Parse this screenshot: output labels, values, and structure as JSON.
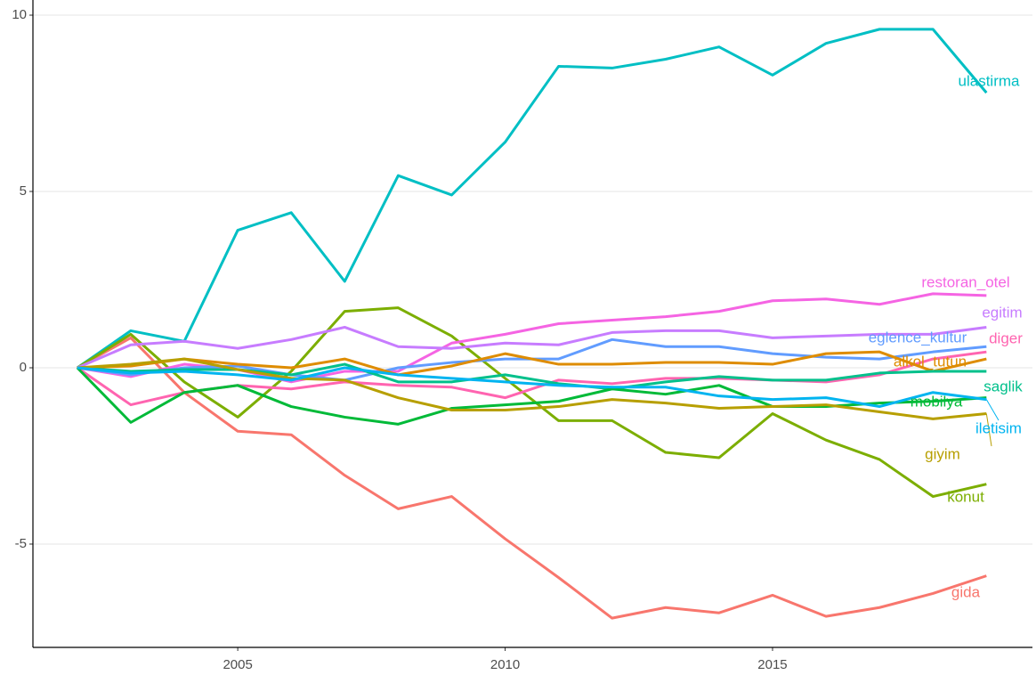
{
  "chart_data": {
    "type": "line",
    "x": [
      2002,
      2003,
      2004,
      2005,
      2006,
      2007,
      2008,
      2009,
      2010,
      2011,
      2012,
      2013,
      2014,
      2015,
      2016,
      2017,
      2018,
      2019
    ],
    "xlim": [
      2001.17,
      2019.86
    ],
    "xticks": [
      2005,
      2010,
      2015
    ],
    "ylim": [
      -7.93,
      10.43
    ],
    "yticks": [
      -5,
      0,
      5,
      10
    ],
    "grid": true,
    "series": [
      {
        "name": "ulastirma",
        "color": "#00bfc4",
        "values": [
          0,
          1.05,
          0.75,
          3.9,
          4.4,
          2.45,
          5.45,
          4.9,
          6.4,
          8.55,
          8.5,
          8.75,
          9.1,
          8.3,
          9.2,
          9.6,
          9.6,
          7.8
        ]
      },
      {
        "name": "gida",
        "color": "#f8766d",
        "values": [
          0,
          0.85,
          -0.7,
          -1.8,
          -1.9,
          -3.05,
          -4,
          -3.65,
          -4.85,
          -5.95,
          -7.1,
          -6.8,
          -6.95,
          -6.45,
          -7.05,
          -6.8,
          -6.4,
          -5.9
        ]
      },
      {
        "name": "konut",
        "color": "#7cae00",
        "values": [
          0,
          0.95,
          -0.4,
          -1.4,
          -0.1,
          1.6,
          1.7,
          0.9,
          -0.3,
          -1.5,
          -1.5,
          -2.4,
          -2.55,
          -1.3,
          -2.05,
          -2.6,
          -3.65,
          -3.3
        ]
      },
      {
        "name": "restoran_otel",
        "color": "#f564e3",
        "values": [
          0,
          -0.25,
          0.1,
          -0.05,
          -0.4,
          -0.1,
          -0.1,
          0.7,
          0.95,
          1.25,
          1.35,
          1.45,
          1.6,
          1.9,
          1.95,
          1.8,
          2.1,
          2.05
        ]
      },
      {
        "name": "egitim",
        "color": "#c77cff",
        "values": [
          0,
          0.65,
          0.75,
          0.55,
          0.8,
          1.15,
          0.6,
          0.55,
          0.7,
          0.65,
          1.0,
          1.05,
          1.05,
          0.85,
          0.9,
          0.95,
          0.95,
          1.15
        ]
      },
      {
        "name": "eglence_kultur",
        "color": "#619cff",
        "values": [
          0,
          -0.2,
          0.0,
          0.05,
          -0.2,
          -0.35,
          0.0,
          0.15,
          0.25,
          0.25,
          0.8,
          0.6,
          0.6,
          0.4,
          0.3,
          0.25,
          0.45,
          0.6
        ]
      },
      {
        "name": "diger",
        "color": "#ff64b0",
        "values": [
          0,
          -1.05,
          -0.7,
          -0.5,
          -0.6,
          -0.4,
          -0.5,
          -0.55,
          -0.85,
          -0.35,
          -0.45,
          -0.3,
          -0.3,
          -0.35,
          -0.4,
          -0.2,
          0.25,
          0.45
        ]
      },
      {
        "name": "alkol_tutun",
        "color": "#de8c00",
        "values": [
          0,
          0.05,
          0.25,
          0.1,
          0.0,
          0.25,
          -0.2,
          0.05,
          0.4,
          0.1,
          0.1,
          0.15,
          0.15,
          0.1,
          0.4,
          0.45,
          -0.1,
          0.25
        ]
      },
      {
        "name": "saglik",
        "color": "#00c08b",
        "values": [
          0,
          -0.1,
          -0.05,
          -0.05,
          -0.2,
          0.1,
          -0.4,
          -0.4,
          -0.2,
          -0.45,
          -0.6,
          -0.4,
          -0.25,
          -0.35,
          -0.35,
          -0.15,
          -0.1,
          -0.1
        ]
      },
      {
        "name": "mobilya",
        "color": "#00ba38",
        "values": [
          0,
          -1.55,
          -0.7,
          -0.5,
          -1.1,
          -1.4,
          -1.6,
          -1.15,
          -1.05,
          -0.95,
          -0.6,
          -0.75,
          -0.5,
          -1.1,
          -1.1,
          -1.0,
          -0.95,
          -0.85
        ]
      },
      {
        "name": "giyim",
        "color": "#b79f00",
        "values": [
          0,
          0.1,
          0.25,
          -0.05,
          -0.3,
          -0.35,
          -0.85,
          -1.2,
          -1.2,
          -1.1,
          -0.9,
          -1.0,
          -1.15,
          -1.1,
          -1.05,
          -1.25,
          -1.45,
          -1.3
        ]
      },
      {
        "name": "iletisim",
        "color": "#00b4f0",
        "values": [
          0,
          -0.15,
          -0.1,
          -0.2,
          -0.35,
          0.0,
          -0.2,
          -0.3,
          -0.4,
          -0.5,
          -0.55,
          -0.55,
          -0.8,
          -0.9,
          -0.85,
          -1.1,
          -0.7,
          -0.9
        ]
      }
    ]
  }
}
